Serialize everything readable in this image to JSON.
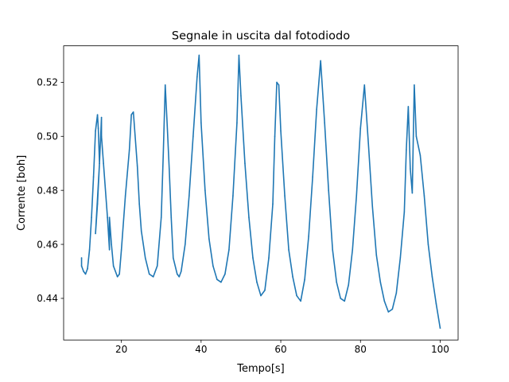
{
  "chart_data": {
    "type": "line",
    "title": "Segnale in uscita dal fotodiodo",
    "xlabel": "Tempo[s]",
    "ylabel": "Corrente [boh]",
    "xlim": [
      5.5,
      104.5
    ],
    "ylim": [
      0.4246,
      0.5335
    ],
    "xticks": [
      20,
      40,
      60,
      80,
      100
    ],
    "xtick_labels": [
      "20",
      "40",
      "60",
      "80",
      "100"
    ],
    "yticks": [
      0.44,
      0.46,
      0.48,
      0.5,
      0.52
    ],
    "ytick_labels": [
      "0.44",
      "0.46",
      "0.48",
      "0.50",
      "0.52"
    ],
    "grid": false,
    "color": "#1f77b4",
    "series": [
      {
        "x": [
          10.0,
          10.0,
          10.5,
          11.0,
          11.5,
          12.0,
          12.5,
          13.0,
          13.5,
          14.0,
          14.2,
          14.5,
          14.0,
          13.5,
          14.5,
          15.0,
          15.0,
          15.5,
          16.5,
          17.0,
          17.0,
          17.5,
          18.0,
          19.0,
          19.5,
          20.0,
          21.0,
          22.0,
          22.5,
          23.0,
          24.0,
          24.5,
          25.0,
          26.0,
          27.0,
          28.0,
          29.0,
          30.0,
          30.5,
          31.0,
          31.5,
          32.0,
          32.5,
          33.0,
          34.0,
          34.5,
          35.0,
          36.0,
          37.0,
          38.0,
          39.0,
          39.5,
          40.0,
          41.0,
          42.0,
          43.0,
          44.0,
          45.0,
          46.0,
          47.0,
          48.0,
          49.0,
          49.5,
          50.0,
          51.0,
          52.0,
          53.0,
          54.0,
          55.0,
          56.0,
          57.0,
          58.0,
          58.5,
          59.0,
          59.5,
          60.0,
          61.0,
          62.0,
          63.0,
          64.0,
          65.0,
          66.0,
          67.0,
          68.0,
          69.0,
          70.0,
          71.0,
          72.0,
          73.0,
          74.0,
          75.0,
          76.0,
          77.0,
          78.0,
          79.0,
          80.0,
          81.0,
          82.0,
          83.0,
          84.0,
          85.0,
          86.0,
          87.0,
          88.0,
          89.0,
          90.0,
          91.0,
          91.5,
          92.0,
          92.5,
          93.0,
          93.5,
          94.0,
          95.0,
          96.0,
          97.0,
          98.0,
          99.0,
          100.0
        ],
        "y": [
          0.455,
          0.452,
          0.45,
          0.449,
          0.451,
          0.458,
          0.47,
          0.485,
          0.502,
          0.508,
          0.503,
          0.49,
          0.475,
          0.464,
          0.49,
          0.507,
          0.5,
          0.49,
          0.47,
          0.458,
          0.47,
          0.46,
          0.452,
          0.448,
          0.449,
          0.458,
          0.478,
          0.495,
          0.508,
          0.509,
          0.489,
          0.475,
          0.465,
          0.455,
          0.449,
          0.448,
          0.452,
          0.47,
          0.493,
          0.519,
          0.504,
          0.488,
          0.47,
          0.455,
          0.449,
          0.448,
          0.45,
          0.46,
          0.478,
          0.5,
          0.522,
          0.53,
          0.505,
          0.48,
          0.462,
          0.452,
          0.447,
          0.446,
          0.449,
          0.458,
          0.478,
          0.505,
          0.53,
          0.515,
          0.49,
          0.47,
          0.455,
          0.446,
          0.441,
          0.443,
          0.455,
          0.475,
          0.5,
          0.52,
          0.519,
          0.502,
          0.478,
          0.458,
          0.448,
          0.441,
          0.439,
          0.447,
          0.463,
          0.485,
          0.51,
          0.528,
          0.505,
          0.48,
          0.458,
          0.446,
          0.44,
          0.439,
          0.445,
          0.458,
          0.478,
          0.503,
          0.519,
          0.497,
          0.474,
          0.456,
          0.446,
          0.439,
          0.435,
          0.436,
          0.442,
          0.455,
          0.472,
          0.495,
          0.511,
          0.488,
          0.479,
          0.519,
          0.5,
          0.493,
          0.478,
          0.46,
          0.448,
          0.438,
          0.429
        ]
      }
    ]
  }
}
